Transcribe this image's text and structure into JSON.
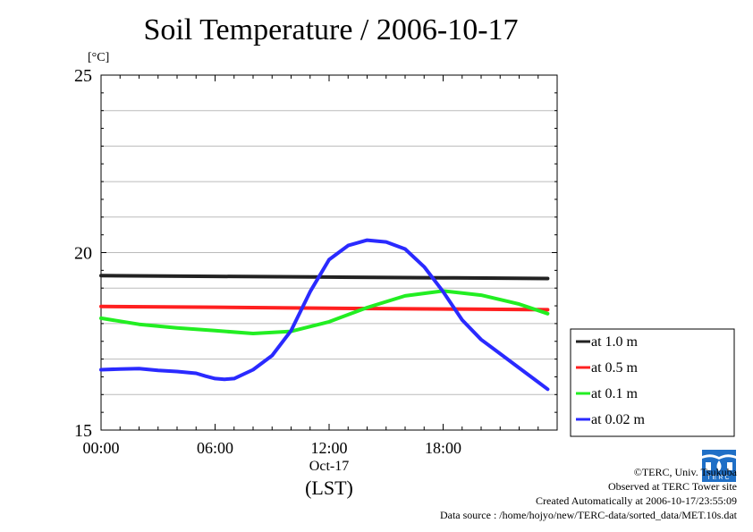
{
  "title": "Soil Temperature / 2006-10-17",
  "chart_data": {
    "type": "line",
    "title": "Soil Temperature / 2006-10-17",
    "ylabel": "[°C]",
    "ylim": [
      15,
      25
    ],
    "y_ticks": [
      15,
      20,
      25
    ],
    "xlim": [
      0,
      24
    ],
    "x_ticks": [
      0,
      6,
      12,
      18
    ],
    "x_tick_labels": [
      "00:00",
      "06:00",
      "12:00",
      "18:00"
    ],
    "x_sublabel": "Oct-17",
    "xlabel": "(LST)",
    "grid": "horizontal",
    "legend_position": "right",
    "series": [
      {
        "name": "at 1.0 m",
        "color": "#222222",
        "x": [
          0,
          6,
          12,
          18,
          23.5
        ],
        "y": [
          19.35,
          19.33,
          19.31,
          19.29,
          19.27
        ]
      },
      {
        "name": "at 0.5 m",
        "color": "#ff2020",
        "x": [
          0,
          6,
          12,
          18,
          23.5
        ],
        "y": [
          18.48,
          18.46,
          18.43,
          18.41,
          18.39
        ]
      },
      {
        "name": "at 0.1 m",
        "color": "#22ee22",
        "x": [
          0,
          2,
          4,
          6,
          8,
          10,
          12,
          14,
          16,
          18,
          20,
          22,
          23.5
        ],
        "y": [
          18.15,
          17.98,
          17.88,
          17.8,
          17.72,
          17.78,
          18.05,
          18.45,
          18.78,
          18.92,
          18.8,
          18.55,
          18.28
        ]
      },
      {
        "name": "at 0.02 m",
        "color": "#2a2aff",
        "x": [
          0,
          1,
          2,
          3,
          4,
          5,
          5.5,
          6,
          6.5,
          7,
          8,
          9,
          10,
          11,
          12,
          13,
          14,
          15,
          16,
          17,
          18,
          19,
          20,
          21,
          22,
          23,
          23.5
        ],
        "y": [
          16.7,
          16.72,
          16.73,
          16.68,
          16.65,
          16.6,
          16.52,
          16.45,
          16.43,
          16.45,
          16.7,
          17.1,
          17.8,
          18.9,
          19.8,
          20.2,
          20.35,
          20.3,
          20.1,
          19.6,
          18.9,
          18.1,
          17.55,
          17.15,
          16.75,
          16.35,
          16.15
        ]
      }
    ]
  },
  "credits": {
    "copyright": "©TERC, Univ. Tsukuba",
    "observed": "Observed at TERC Tower site",
    "created": "Created Automatically at 2006-10-17/23:55:09",
    "source": "Data source : /home/hojyo/new/TERC-data/sorted_data/MET.10s.dat"
  },
  "logo_text": "TERC"
}
